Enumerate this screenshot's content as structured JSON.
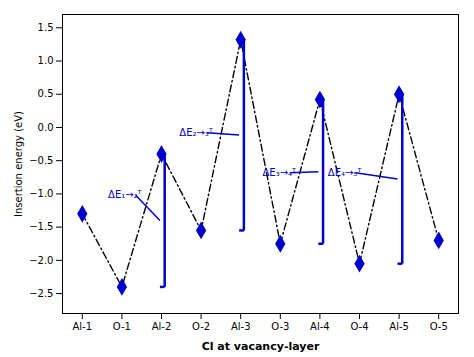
{
  "chart_data": {
    "type": "line",
    "categories": [
      "Al-1",
      "O-1",
      "Al-2",
      "O-2",
      "Al-3",
      "O-3",
      "Al-4",
      "O-4",
      "Al-5",
      "O-5"
    ],
    "values": [
      -1.3,
      -2.4,
      -0.4,
      -1.55,
      1.32,
      -1.75,
      0.42,
      -2.05,
      0.5,
      -1.7
    ],
    "color": "#0000CC",
    "marker": "diamond",
    "line_style": "dashdot",
    "xlabel": "Cl at vacancy-layer",
    "ylabel": "Insertion energy (eV)",
    "ylim": [
      -2.8,
      1.7
    ],
    "yticks": [
      {
        "value": -2.5,
        "label": "−2.5"
      },
      {
        "value": -2.0,
        "label": "−2.0"
      },
      {
        "value": -1.5,
        "label": "−1.5"
      },
      {
        "value": -1.0,
        "label": "−1.0"
      },
      {
        "value": -0.5,
        "label": "−0.5"
      },
      {
        "value": 0.0,
        "label": "0.0"
      },
      0.5,
      {
        "value": 1.0,
        "label": "1.0"
      },
      1.5
    ],
    "annotations": [
      {
        "text": "ΔE₁→₂ᵀ",
        "x": 0.65,
        "y": -1.02,
        "bracket_x": 2.08,
        "y_top": -0.4,
        "y_bot": -2.4
      },
      {
        "text": "ΔE₂→₃ᵀ",
        "x": 2.45,
        "y": -0.08,
        "bracket_x": 4.08,
        "y_top": 1.32,
        "y_bot": -1.55
      },
      {
        "text": "ΔE₃→₄ᵀ",
        "x": 4.55,
        "y": -0.68,
        "bracket_x": 6.08,
        "y_top": 0.42,
        "y_bot": -1.75
      },
      {
        "text": "ΔE₄→₅ᵀ",
        "x": 6.2,
        "y": -0.68,
        "bracket_x": 8.08,
        "y_top": 0.5,
        "y_bot": -2.05
      }
    ]
  }
}
